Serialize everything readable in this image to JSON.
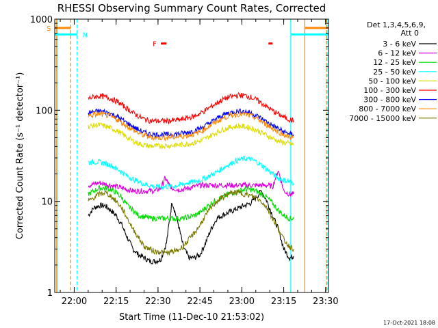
{
  "chart_data": {
    "type": "line",
    "title": "RHESSI Observing Summary Count Rates, Corrected",
    "xlabel": "Start Time (11-Dec-10 21:53:02)",
    "ylabel": "Corrected Count Rate (s⁻¹ detector⁻¹)",
    "y_scale": "log",
    "ylim": [
      1,
      1000
    ],
    "xlim_minutes_from_start": [
      0,
      98
    ],
    "x_ticks": [
      {
        "label": "22:00",
        "min": 6.97
      },
      {
        "label": "22:15",
        "min": 21.97
      },
      {
        "label": "22:30",
        "min": 36.97
      },
      {
        "label": "22:45",
        "min": 51.97
      },
      {
        "label": "23:00",
        "min": 66.97
      },
      {
        "label": "23:15",
        "min": 81.97
      },
      {
        "label": "23:30",
        "min": 96.97
      }
    ],
    "y_ticks": [
      {
        "label": "1",
        "value": 1
      },
      {
        "label": "10",
        "value": 10
      },
      {
        "label": "100",
        "value": 100
      },
      {
        "label": "1000",
        "value": 1000
      }
    ],
    "legend": {
      "header": "Det 1,3,4,5,6,9,",
      "subheader": "Att 0",
      "placement": "right"
    },
    "series": [
      {
        "name": "3 - 6 keV",
        "color": "#000000",
        "x": [
          12,
          14,
          16,
          18,
          20,
          22,
          24,
          26,
          28,
          30,
          32,
          34,
          36,
          38,
          40,
          42,
          44,
          46,
          48,
          50,
          52,
          54,
          56,
          58,
          60,
          62,
          64,
          66,
          68,
          70,
          72,
          74,
          76,
          78,
          80,
          82,
          84,
          85.5
        ],
        "values": [
          7,
          8.5,
          9,
          9,
          8,
          7,
          5.5,
          4,
          3,
          2.6,
          2.4,
          2.2,
          2.2,
          2.3,
          3.5,
          10,
          6,
          3.2,
          2.4,
          2.4,
          2.6,
          3.5,
          5,
          6.5,
          7,
          7.5,
          8,
          8.5,
          9,
          9.5,
          11,
          13,
          10,
          7,
          5,
          3,
          2.4,
          2.5
        ]
      },
      {
        "name": "6 - 12 keV",
        "color": "#dd00dd",
        "x": [
          12,
          14,
          16,
          18,
          20,
          22,
          24,
          26,
          28,
          30,
          32,
          34,
          36,
          38,
          39.5,
          41,
          42,
          44,
          46,
          48,
          50,
          52,
          54,
          56,
          58,
          60,
          62,
          64,
          66,
          68,
          70,
          72,
          74,
          76,
          78,
          80,
          82,
          84,
          85.5
        ],
        "values": [
          15,
          15.5,
          16,
          15.5,
          15,
          14.5,
          14,
          13.5,
          13,
          13,
          13,
          13,
          13,
          14,
          18,
          15,
          14,
          13.5,
          13.5,
          14,
          14.5,
          15,
          15,
          15,
          15,
          15,
          15,
          15,
          15,
          15,
          15,
          15,
          15,
          15,
          14.5,
          22,
          13,
          12,
          12
        ]
      },
      {
        "name": "12 - 25 keV",
        "color": "#00dd00",
        "x": [
          12,
          14,
          16,
          18,
          20,
          22,
          24,
          26,
          28,
          30,
          32,
          34,
          36,
          38,
          40,
          42,
          44,
          46,
          48,
          50,
          52,
          54,
          56,
          58,
          60,
          62,
          64,
          66,
          68,
          70,
          72,
          74,
          76,
          78,
          80,
          82,
          84,
          85.5
        ],
        "values": [
          12,
          13,
          14,
          14,
          13.5,
          12.5,
          11,
          9,
          8,
          7,
          6.8,
          6.5,
          6.5,
          6.5,
          6.5,
          6.5,
          6.5,
          6.5,
          6.8,
          7,
          7.5,
          8.5,
          9.5,
          10.5,
          11,
          12,
          12.5,
          13,
          13.5,
          13.5,
          13,
          12,
          11,
          9.5,
          8,
          7,
          6.5,
          6.5
        ]
      },
      {
        "name": "25 - 50 keV",
        "color": "#00ffff",
        "x": [
          12,
          14,
          16,
          18,
          20,
          22,
          24,
          26,
          28,
          30,
          32,
          34,
          36,
          38,
          40,
          42,
          44,
          46,
          48,
          50,
          52,
          54,
          56,
          58,
          60,
          62,
          64,
          66,
          68,
          70,
          72,
          74,
          76,
          78,
          80,
          82,
          84,
          85.5
        ],
        "values": [
          27,
          27,
          27,
          26,
          25,
          23,
          21,
          19,
          17.5,
          16.5,
          15.5,
          15,
          14.5,
          14.5,
          14.5,
          14.5,
          15,
          15.5,
          16,
          16.5,
          17,
          18,
          19.5,
          21,
          23,
          25,
          27,
          28.5,
          29.5,
          29,
          27.5,
          25,
          22.5,
          20,
          18,
          17,
          16.5,
          16
        ]
      },
      {
        "name": "50 - 100 keV",
        "color": "#dddd00",
        "x": [
          12,
          14,
          16,
          18,
          20,
          22,
          24,
          26,
          28,
          30,
          32,
          34,
          36,
          38,
          40,
          42,
          44,
          46,
          48,
          50,
          52,
          54,
          56,
          58,
          60,
          62,
          64,
          66,
          68,
          70,
          72,
          74,
          76,
          78,
          80,
          82,
          84,
          85.5
        ],
        "values": [
          66,
          68,
          69,
          67,
          64,
          60,
          55,
          50,
          46,
          43,
          41.5,
          40.5,
          40.5,
          40.5,
          41,
          41,
          41.5,
          42,
          43,
          44,
          46,
          49,
          53,
          57,
          61,
          64,
          66,
          67,
          66,
          64,
          61,
          57,
          53,
          49,
          46,
          44,
          43,
          42
        ]
      },
      {
        "name": "100 - 300 keV",
        "color": "#ff0000",
        "x": [
          12,
          14,
          16,
          18,
          20,
          22,
          24,
          26,
          28,
          30,
          32,
          34,
          36,
          38,
          40,
          42,
          44,
          46,
          48,
          50,
          52,
          54,
          56,
          58,
          60,
          62,
          64,
          66,
          68,
          70,
          72,
          74,
          76,
          78,
          80,
          82,
          84,
          85.5
        ],
        "values": [
          135,
          140,
          143,
          140,
          134,
          126,
          115,
          104,
          94,
          86,
          80,
          77,
          76,
          76,
          76,
          77,
          78,
          80,
          83,
          86,
          92,
          100,
          110,
          120,
          130,
          138,
          143,
          146,
          145,
          140,
          131,
          120,
          109,
          99,
          91,
          84,
          79,
          77
        ]
      },
      {
        "name": "300 - 800 keV",
        "color": "#0000ff",
        "x": [
          12,
          14,
          16,
          18,
          20,
          22,
          24,
          26,
          28,
          30,
          32,
          34,
          36,
          38,
          40,
          42,
          44,
          46,
          48,
          50,
          52,
          54,
          56,
          58,
          60,
          62,
          64,
          66,
          68,
          70,
          72,
          74,
          76,
          78,
          80,
          82,
          84,
          85.5
        ],
        "values": [
          93,
          96,
          98,
          96,
          92,
          86,
          79,
          72,
          66,
          61,
          57,
          55,
          54,
          54,
          54,
          54.5,
          55,
          56,
          57.5,
          60,
          63,
          68,
          74,
          81,
          88,
          93,
          96,
          98,
          97,
          94,
          88,
          81,
          74,
          68,
          63,
          58,
          55,
          54
        ]
      },
      {
        "name": "800 - 7000 keV",
        "color": "#ff8800",
        "x": [
          12,
          14,
          16,
          18,
          20,
          22,
          24,
          26,
          28,
          30,
          32,
          34,
          36,
          38,
          40,
          42,
          44,
          46,
          48,
          50,
          52,
          54,
          56,
          58,
          60,
          62,
          64,
          66,
          68,
          70,
          72,
          74,
          76,
          78,
          80,
          82,
          84,
          85.5
        ],
        "values": [
          86,
          89,
          91,
          89,
          85,
          80,
          73,
          67,
          61,
          56,
          53,
          51,
          50,
          50,
          50,
          50.5,
          51,
          52,
          53,
          55,
          58,
          63,
          69,
          75,
          81,
          86,
          89,
          91,
          90,
          87,
          82,
          75,
          69,
          63,
          58,
          54,
          51,
          50
        ]
      },
      {
        "name": "7000 - 15000 keV",
        "color": "#777700",
        "x": [
          12,
          14,
          16,
          18,
          20,
          22,
          24,
          26,
          28,
          30,
          32,
          34,
          36,
          38,
          40,
          42,
          44,
          46,
          48,
          50,
          52,
          54,
          56,
          58,
          60,
          62,
          64,
          66,
          68,
          70,
          72,
          74,
          76,
          78,
          80,
          82,
          84,
          85.5
        ],
        "values": [
          10,
          11,
          12,
          12.5,
          11.5,
          10,
          8.5,
          6.5,
          5,
          4,
          3.2,
          3,
          2.8,
          2.8,
          2.7,
          2.8,
          2.9,
          3.2,
          3.8,
          4.5,
          5.5,
          7,
          8.5,
          10,
          11,
          12,
          12.5,
          12.5,
          12,
          11.5,
          11,
          10,
          8.5,
          6.5,
          5,
          3.8,
          3.2,
          3
        ]
      }
    ],
    "flags": [
      {
        "label": "S",
        "color": "#ff8800",
        "x_start": 0,
        "x_end": 5.7,
        "value": 800
      },
      {
        "label": "N",
        "color": "#00ffff",
        "x_start": 0,
        "x_end": 8,
        "value": 680
      },
      {
        "label": "F",
        "color": "#ff0000",
        "x_start": 38,
        "x_end": 40,
        "value": 540
      }
    ],
    "extra_segments": [
      {
        "color": "#ff0000",
        "x_start": 76.5,
        "x_end": 78,
        "value": 540
      },
      {
        "color": "#ff8800",
        "x_start": 89.5,
        "x_end": 98,
        "value": 800
      },
      {
        "color": "#00ffff",
        "x_start": 84.5,
        "x_end": 98,
        "value": 680
      }
    ],
    "vertical_markers": [
      {
        "color": "#ff8800",
        "style": "solid",
        "x": 0.7
      },
      {
        "color": "#00ffff",
        "style": "solid",
        "x": 0.9
      },
      {
        "color": "#ff8800",
        "style": "dashed",
        "x": 5.7
      },
      {
        "color": "#00ffff",
        "style": "dashed",
        "x": 8
      },
      {
        "color": "#00ffff",
        "style": "solid",
        "x": 84.5
      },
      {
        "color": "#ff8800",
        "style": "solid",
        "x": 89.5
      },
      {
        "color": "#ff8800",
        "style": "dashed",
        "x": 97.3
      },
      {
        "color": "#00ffff",
        "style": "dashed",
        "x": 97.5
      }
    ],
    "grid": false
  },
  "footer": {
    "timestamp": "17-Oct-2021 18:08"
  }
}
